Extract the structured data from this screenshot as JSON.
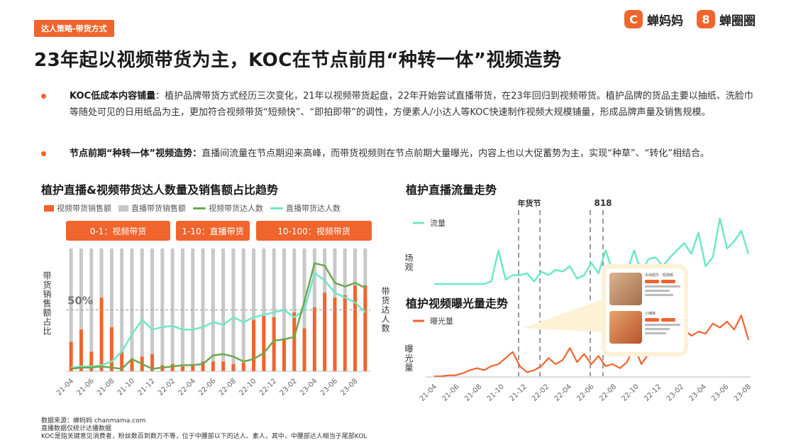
{
  "tag": "达人策略-带货方式",
  "logos": [
    {
      "mark": "C",
      "name": "蝉妈妈"
    },
    {
      "mark": "8",
      "name": "蝉圈圈"
    }
  ],
  "title": "23年起以视频带货为主，KOC在节点前用“种转一体”视频造势",
  "bullets": [
    {
      "head": "KOC低成本内容铺量",
      "body": "：植护品牌带货方式经历三次变化，21年以视频带货起盘，22年开始尝试直播带货，在23年回归到视频带货。植护品牌的货品主要以抽纸、洗脸巾等随处可见的日用纸品为主，更加符合视频带货“短频快”、“即拍即带”的调性，方便素人/小达人等KOC快速制作视频大规模铺量，形成品牌声量及销售规模。"
    },
    {
      "head": "节点前期“种转一体”视频造势：",
      "body": "直播间流量在节点期迎来高峰，而带货视频则在节点前期大量曝光，内容上也以大促蓄势为主，实现“种草”、“转化”相结合。"
    }
  ],
  "colors": {
    "accent": "#f0642d",
    "grey": "#c8c8c8",
    "green": "#6aa84f",
    "teal": "#6fe7c7",
    "exposure": "#f0642d",
    "dash": "#9a9a9a"
  },
  "chart_data": [
    {
      "type": "bar",
      "title": "植护直播&视频带货达人数量及销售额占比趋势",
      "legend": [
        "视频带货销售额",
        "直播带货销售额",
        "视频带货达人数",
        "直播带货达人数"
      ],
      "phases": [
        "0-1：视频带货",
        "1-10：直播带货",
        "10-100：视频带货"
      ],
      "ylabel_left": "带货销售额占比",
      "ylabel_right": "带货达人数",
      "reference_label": "50%",
      "reference_value": 50,
      "ylim": [
        0,
        100
      ],
      "x_ticks": [
        "21-04",
        "21-06",
        "21-08",
        "21-10",
        "21-12",
        "22-02",
        "22-04",
        "22-06",
        "22-08",
        "22-10",
        "22-12",
        "23-02",
        "23-04",
        "23-06",
        "23-08"
      ],
      "categories": [
        "21-04",
        "21-05",
        "21-06",
        "21-07",
        "21-08",
        "21-09",
        "21-10",
        "21-11",
        "21-12",
        "22-01",
        "22-02",
        "22-03",
        "22-04",
        "22-05",
        "22-06",
        "22-07",
        "22-08",
        "22-09",
        "22-10",
        "22-11",
        "22-12",
        "23-01",
        "23-02",
        "23-03",
        "23-04",
        "23-05",
        "23-06",
        "23-07",
        "23-08",
        "23-09"
      ],
      "video_sales_share": [
        24,
        34,
        16,
        60,
        36,
        16,
        10,
        12,
        14,
        5,
        6,
        4,
        6,
        8,
        8,
        8,
        6,
        7,
        42,
        45,
        44,
        27,
        48,
        35,
        52,
        64,
        60,
        62,
        70,
        70
      ],
      "live_sales_share": [
        76,
        66,
        84,
        40,
        64,
        84,
        90,
        88,
        86,
        95,
        94,
        96,
        94,
        92,
        92,
        92,
        94,
        93,
        58,
        55,
        56,
        73,
        52,
        65,
        48,
        36,
        40,
        38,
        30,
        30
      ],
      "video_creators_index": [
        2,
        3,
        3,
        4,
        3,
        2,
        10,
        6,
        2,
        3,
        4,
        5,
        5,
        6,
        13,
        14,
        12,
        8,
        10,
        15,
        25,
        26,
        28,
        57,
        88,
        86,
        72,
        69,
        72,
        68
      ],
      "live_creators_index": [
        3,
        4,
        4,
        5,
        8,
        16,
        30,
        42,
        34,
        36,
        37,
        34,
        34,
        36,
        40,
        38,
        44,
        40,
        44,
        46,
        48,
        50,
        44,
        50,
        80,
        74,
        64,
        60,
        56,
        48
      ]
    },
    {
      "type": "line",
      "title": "植护直播流量走势",
      "legend": [
        "流量"
      ],
      "ylabel": "场观",
      "annotations": [
        "年货节",
        "818"
      ],
      "x_ticks": [
        "21-04",
        "21-06",
        "21-08",
        "21-10",
        "21-12",
        "22-02",
        "22-04",
        "22-06",
        "22-08",
        "22-10",
        "22-12",
        "23-02",
        "23-04",
        "23-06",
        "23-08"
      ],
      "values": [
        0,
        0,
        0,
        0,
        0,
        0,
        0,
        0,
        3,
        38,
        5,
        10,
        10,
        12,
        3,
        14,
        10,
        16,
        14,
        20,
        6,
        10,
        24,
        12,
        38,
        14,
        18,
        14,
        38,
        12,
        28,
        30,
        20,
        30,
        38,
        46,
        34,
        58,
        20,
        30,
        74,
        40,
        48,
        60,
        34
      ]
    },
    {
      "type": "line",
      "title": "植护视频曝光量走势",
      "legend": [
        "曝光量"
      ],
      "ylabel": "曝光量",
      "x_ticks": [
        "21-04",
        "21-06",
        "21-08",
        "21-10",
        "21-12",
        "22-02",
        "22-04",
        "22-06",
        "22-08",
        "22-10",
        "22-12",
        "23-02",
        "23-04",
        "23-06",
        "23-08"
      ],
      "values": [
        0,
        0,
        1,
        1,
        3,
        6,
        8,
        6,
        10,
        12,
        18,
        24,
        10,
        4,
        6,
        10,
        18,
        12,
        16,
        28,
        14,
        22,
        12,
        20,
        10,
        12,
        8,
        14,
        30,
        12,
        22,
        34,
        34,
        30,
        48,
        46,
        40,
        44,
        42,
        52,
        48,
        54,
        46,
        60,
        36
      ]
    }
  ],
  "inset": {
    "line1": "大尚妞尔 · 短视频",
    "line2": "小辣妹"
  },
  "source_lines": [
    "数据来源：蝉妈妈 chanmama.com",
    "直播数据仅统计达播数据",
    "KOC是指关键意见消费者，粉丝数百到数万不等，位于中腰部以下的达人、素人，其中，中腰部达人相当于尾部KOL"
  ]
}
